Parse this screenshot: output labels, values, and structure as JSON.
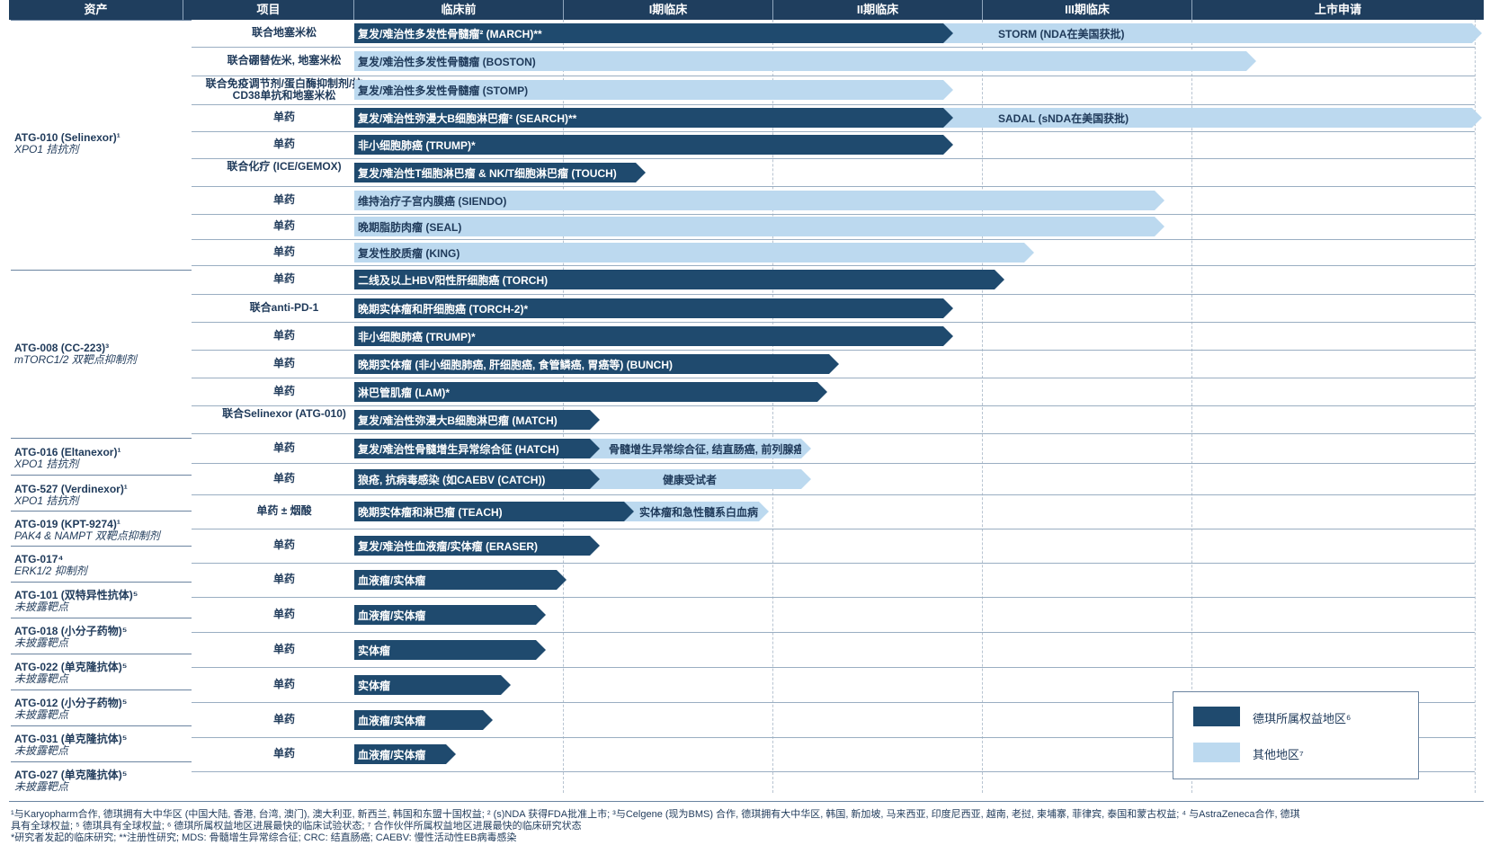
{
  "header": {
    "cols": [
      "资产",
      "项目",
      "临床前",
      "I期临床",
      "II期临床",
      "III期临床",
      "上市申请"
    ]
  },
  "assets": [
    {
      "name": "ATG-010 (Selinexor)¹",
      "desc": "XPO1 拮抗剂"
    },
    {
      "name": "ATG-008 (CC-223)³",
      "desc": "mTORC1/2 双靶点抑制剂"
    },
    {
      "name": "ATG-016 (Eltanexor)¹",
      "desc": "XPO1 拮抗剂"
    },
    {
      "name": "ATG-527 (Verdinexor)¹",
      "desc": "XPO1 拮抗剂"
    },
    {
      "name": "ATG-019 (KPT-9274)¹",
      "desc": "PAK4 & NAMPT 双靶点抑制剂"
    },
    {
      "name": "ATG-017⁴",
      "desc": "ERK1/2 抑制剂"
    },
    {
      "name": "ATG-101 (双特异性抗体)⁵",
      "desc": "未披露靶点"
    },
    {
      "name": "ATG-018 (小分子药物)⁵",
      "desc": "未披露靶点"
    },
    {
      "name": "ATG-022 (单克隆抗体)⁵",
      "desc": "未披露靶点"
    },
    {
      "name": "ATG-012 (小分子药物)⁵",
      "desc": "未披露靶点"
    },
    {
      "name": "ATG-031 (单克隆抗体)⁵",
      "desc": "未披露靶点"
    },
    {
      "name": "ATG-027 (单克隆抗体)⁵",
      "desc": "未披露靶点"
    }
  ],
  "rows": [
    {
      "project": "联合地塞米松",
      "main": "复发/难治性多发性骨髓瘤² (MARCH)**",
      "ext": "STORM (NDA在美国获批)"
    },
    {
      "project": "联合硼替佐米, 地塞米松",
      "main": "复发/难治性多发性骨髓瘤 (BOSTON)"
    },
    {
      "project": "联合免疫调节剂/蛋白酶抑制剂/抗CD38单抗和地塞米松",
      "main": "复发/难治性多发性骨髓瘤 (STOMP)"
    },
    {
      "project": "单药",
      "main": "复发/难治性弥漫大B细胞淋巴瘤² (SEARCH)**",
      "ext": "SADAL (sNDA在美国获批)"
    },
    {
      "project": "单药",
      "main": "非小细胞肺癌 (TRUMP)*"
    },
    {
      "project": "联合化疗 (ICE/GEMOX)",
      "main": "复发/难治性T细胞淋巴瘤 & NK/T细胞淋巴瘤 (TOUCH)"
    },
    {
      "project": "单药",
      "main": "维持治疗子宫内膜癌 (SIENDO)"
    },
    {
      "project": "单药",
      "main": "晚期脂肪肉瘤 (SEAL)"
    },
    {
      "project": "单药",
      "main": "复发性胶质瘤 (KING)"
    },
    {
      "project": "单药",
      "main": "二线及以上HBV阳性肝细胞癌 (TORCH)"
    },
    {
      "project": "联合anti-PD-1",
      "main": "晚期实体瘤和肝细胞癌 (TORCH-2)*"
    },
    {
      "project": "单药",
      "main": "非小细胞肺癌 (TRUMP)*"
    },
    {
      "project": "单药",
      "main": "晚期实体瘤 (非小细胞肺癌, 肝细胞癌, 食管鳞癌, 胃癌等) (BUNCH)"
    },
    {
      "project": "单药",
      "main": "淋巴管肌瘤 (LAM)*"
    },
    {
      "project": "联合Selinexor (ATG-010)",
      "main": "复发/难治性弥漫大B细胞淋巴瘤 (MATCH)"
    },
    {
      "project": "单药",
      "main": "复发/难治性骨髓增生异常综合征 (HATCH)",
      "ext": "骨髓增生异常综合征, 结直肠癌, 前列腺癌"
    },
    {
      "project": "单药",
      "main": "狼疮, 抗病毒感染 (如CAEBV (CATCH))",
      "ext": "健康受试者"
    },
    {
      "project": "单药 ± 烟酸",
      "main": "晚期实体瘤和淋巴瘤 (TEACH)",
      "ext": "实体瘤和急性髓系白血病"
    },
    {
      "project": "单药",
      "main": "复发/难治性血液瘤/实体瘤 (ERASER)"
    },
    {
      "project": "单药",
      "main": "血液瘤/实体瘤"
    },
    {
      "project": "单药",
      "main": "血液瘤/实体瘤"
    },
    {
      "project": "单药",
      "main": "实体瘤"
    },
    {
      "project": "单药",
      "main": "实体瘤"
    },
    {
      "project": "单药",
      "main": "血液瘤/实体瘤"
    },
    {
      "project": "单药",
      "main": "血液瘤/实体瘤"
    }
  ],
  "legend": {
    "dark_label": "德琪所属权益地区⁶",
    "light_label": "其他地区⁷",
    "dark_color": "#1f4a6e",
    "light_color": "#bcd9ef"
  },
  "footnotes": {
    "line1": "¹与Karyopharm合作, 德琪拥有大中华区 (中国大陆, 香港, 台湾, 澳门), 澳大利亚, 新西兰, 韩国和东盟十国权益; ² (s)NDA 获得FDA批准上市; ³与Celgene (现为BMS) 合作, 德琪拥有大中华区, 韩国, 新加坡, 马来西亚, 印度尼西亚, 越南, 老挝, 柬埔寨, 菲律宾, 泰国和蒙古权益; ⁴ 与AstraZeneca合作, 德琪",
    "line2": "具有全球权益; ⁵ 德琪具有全球权益; ⁶ 德琪所属权益地区进展最快的临床试验状态; ⁷ 合作伙伴所属权益地区进展最快的临床研究状态",
    "line3": "*研究者发起的临床研究; **注册性研究; MDS: 骨髓增生异常综合征; CRC: 结直肠癌; CAEBV: 慢性活动性EB病毒感染"
  }
}
